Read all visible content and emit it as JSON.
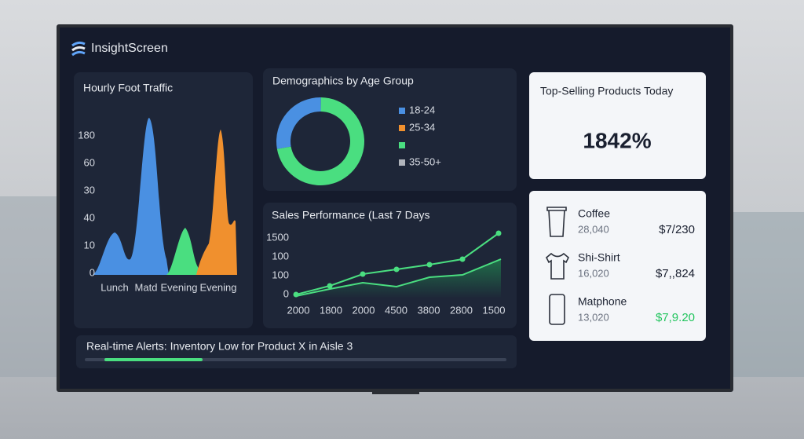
{
  "brand": "InsightScreen",
  "foot_traffic": {
    "title": "Hourly Foot Traffic",
    "y_labels": [
      180,
      60,
      30,
      40,
      10,
      0
    ],
    "x_labels": [
      "Lunch",
      "Matd",
      "Evening",
      "Evening"
    ]
  },
  "demographics": {
    "title": "Demographics by Age Group",
    "type": "donut",
    "segments": [
      {
        "name": "18-24",
        "color": "#4a90e2",
        "value": 28
      },
      {
        "name": "25-34",
        "color": "#f0902e",
        "value": 0
      },
      {
        "color": "#4ade80",
        "value": 72
      },
      {
        "name": "35-50+",
        "color": "#b0b4bb",
        "value": 0
      }
    ]
  },
  "sales": {
    "title": "Sales Performance (Last 7 Days",
    "y_labels": [
      1500,
      100,
      100,
      0
    ],
    "x_labels": [
      2000,
      1800,
      2000,
      4500,
      3800,
      2800,
      1500
    ]
  },
  "alert": {
    "text": "Real-time Alerts: Inventory Low for Product X in Aisle 3"
  },
  "top_selling": {
    "title": "Top-Selling Products Today",
    "value": "1842%"
  },
  "products": [
    {
      "name": "Coffee",
      "count": "28,040",
      "price": "$7/230"
    },
    {
      "name": "Shi-Shirt",
      "count": "16,020",
      "price": "$7,,824"
    },
    {
      "name": "Matphone",
      "count": "13,020",
      "price": "$7,9.20"
    }
  ]
}
